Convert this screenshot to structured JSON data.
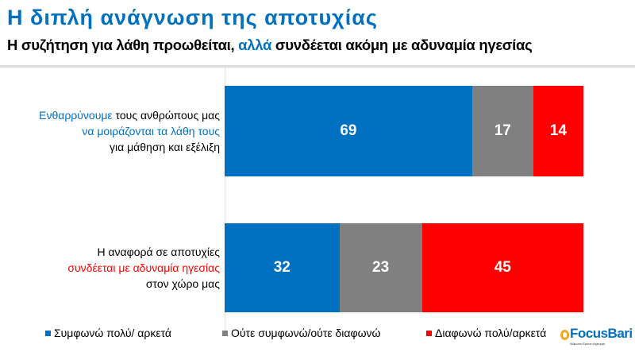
{
  "header": {
    "title": "Η διπλή ανάγνωση της αποτυχίας",
    "subtitle_a": "Η συζήτηση για λάθη προωθείται, ",
    "subtitle_hl": "αλλά",
    "subtitle_b": " συνδέεται ακόμη με αδυναμία ηγεσίας"
  },
  "chart_data": {
    "type": "bar",
    "orientation": "horizontal",
    "stacked": true,
    "percent": true,
    "categories": [
      {
        "parts": [
          {
            "text": "Ενθαρρύνουμε",
            "color": "blue"
          },
          {
            "text": " τους ανθρώπους μας",
            "color": "black"
          }
        ],
        "line2": {
          "text": "να μοιράζονται τα λάθη τους",
          "color": "blue"
        },
        "line3": "για μάθηση και εξέλιξη"
      },
      {
        "line1": "Η αναφορά σε αποτυχίες",
        "line2": {
          "text": "συνδέεται με αδυναμία ηγεσίας",
          "color": "red"
        },
        "line3": "στον χώρο μας"
      }
    ],
    "series": [
      {
        "name": "Συμφωνώ πολύ/ αρκετά",
        "color": "#0070c0",
        "values": [
          69,
          32
        ]
      },
      {
        "name": "Ούτε συμφωνώ/ούτε διαφωνώ",
        "color": "#808080",
        "values": [
          17,
          23
        ]
      },
      {
        "name": "Διαφωνώ πολύ/αρκετά",
        "color": "#ff0000",
        "values": [
          14,
          45
        ]
      }
    ],
    "xlim": [
      0,
      100
    ],
    "grid": false,
    "legend": "bottom"
  },
  "logo": {
    "text": "FocusBari",
    "tagline": "Άνθρωποι • Έρευνα • Δημιουργία"
  }
}
